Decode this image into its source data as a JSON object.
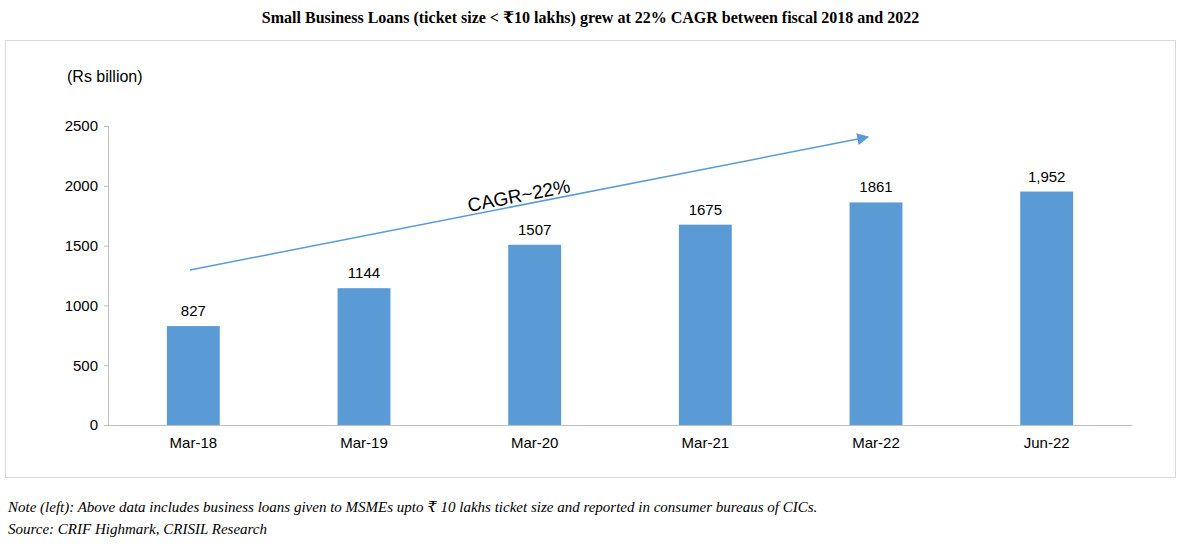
{
  "chart_data": {
    "type": "bar",
    "title": "Small Business Loans (ticket size < ₹10 lakhs) grew at 22% CAGR between fiscal 2018 and 2022",
    "y_label": "(Rs billion)",
    "categories": [
      "Mar-18",
      "Mar-19",
      "Mar-20",
      "Mar-21",
      "Mar-22",
      "Jun-22"
    ],
    "values": [
      827,
      1144,
      1507,
      1675,
      1861,
      1952
    ],
    "value_labels": [
      "827",
      "1144",
      "1507",
      "1675",
      "1861",
      "1,952"
    ],
    "color": "#5b9bd5",
    "ylim": [
      0,
      2500
    ],
    "yticks": [
      0,
      500,
      1000,
      1500,
      2000,
      2500
    ],
    "grid": false,
    "data_labels": true,
    "annotations": [
      "CAGR~22%"
    ],
    "notes": [
      "Note (left): Above data includes business loans given to MSMEs upto ₹ 10 lakhs ticket size and reported in consumer bureaus of CICs.",
      "Source: CRIF Highmark, CRISIL Research"
    ]
  }
}
